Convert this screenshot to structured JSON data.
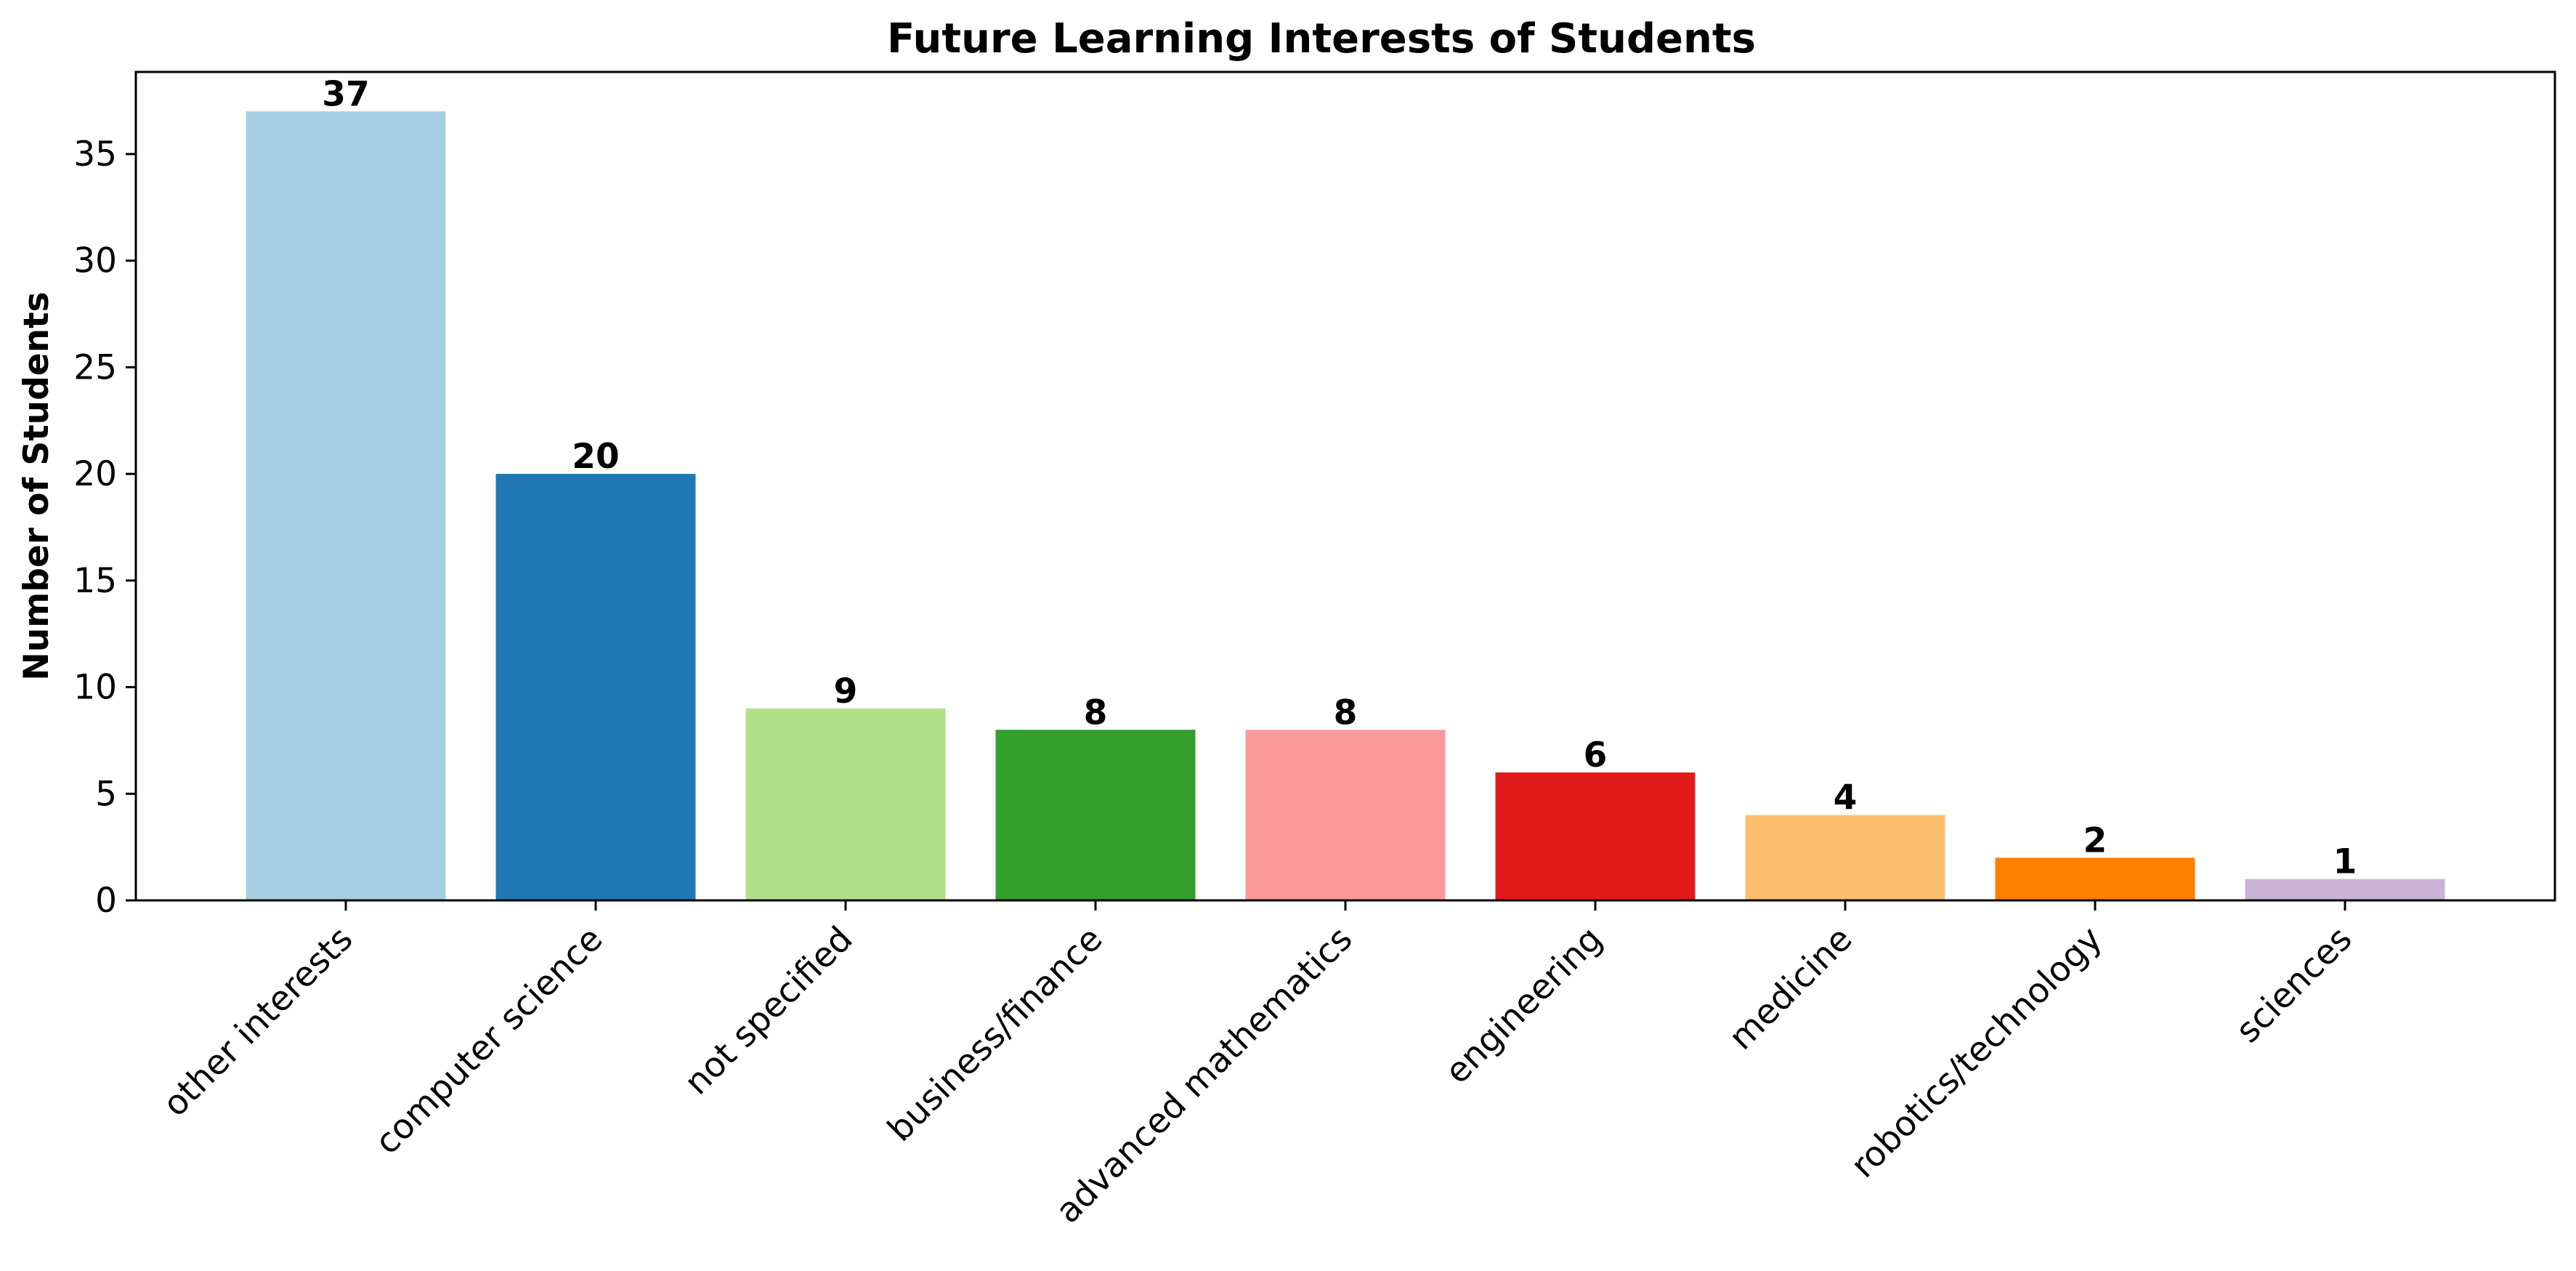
{
  "chart_data": {
    "type": "bar",
    "title": "Future Learning Interests of Students",
    "xlabel": "",
    "ylabel": "Number of Students",
    "categories": [
      "other interests",
      "computer science",
      "not specified",
      "business/finance",
      "advanced mathematics",
      "engineering",
      "medicine",
      "robotics/technology",
      "sciences"
    ],
    "values": [
      37,
      20,
      9,
      8,
      8,
      6,
      4,
      2,
      1
    ],
    "colors": [
      "#a6cee3",
      "#1f78b4",
      "#b2df8a",
      "#33a02c",
      "#fb9a99",
      "#e31a1c",
      "#fdbf6f",
      "#ff7f00",
      "#cab2d6"
    ],
    "data_labels": [
      "37",
      "20",
      "9",
      "8",
      "8",
      "6",
      "4",
      "2",
      "1"
    ],
    "ylim": [
      0,
      38.85
    ],
    "yticks": [
      0,
      5,
      10,
      15,
      20,
      25,
      30,
      35
    ],
    "ytick_labels": [
      "0",
      "5",
      "10",
      "15",
      "20",
      "25",
      "30",
      "35"
    ],
    "grid": false,
    "legend": "none"
  }
}
